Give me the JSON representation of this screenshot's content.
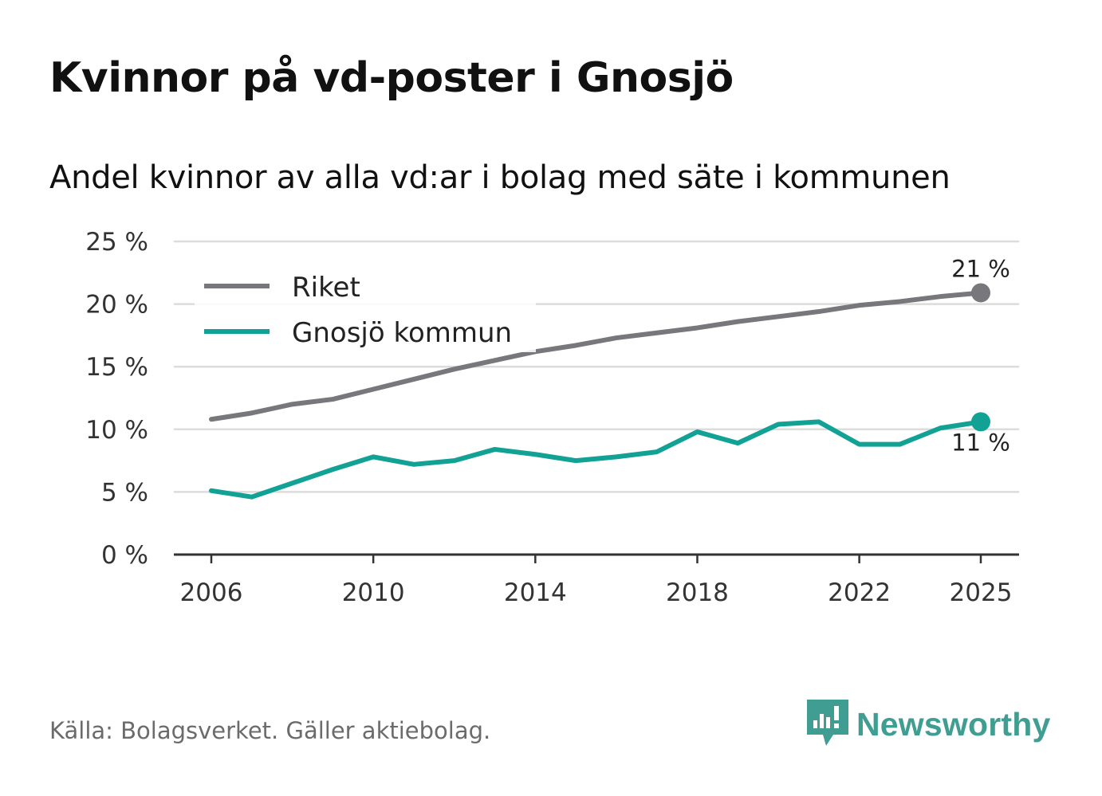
{
  "header": {
    "title": "Kvinnor på vd-poster i Gnosjö",
    "subtitle": "Andel kvinnor av alla vd:ar i bolag med säte i kommunen"
  },
  "footer": {
    "source": "Källa: Bolagsverket. Gäller aktiebolag.",
    "brand": "Newsworthy",
    "brand_color": "#3f9e91"
  },
  "chart_data": {
    "type": "line",
    "title": "Kvinnor på vd-poster i Gnosjö",
    "subtitle": "Andel kvinnor av alla vd:ar i bolag med säte i kommunen",
    "xlabel": "",
    "ylabel": "",
    "x": [
      2006,
      2007,
      2008,
      2009,
      2010,
      2011,
      2012,
      2013,
      2014,
      2015,
      2016,
      2017,
      2018,
      2019,
      2020,
      2021,
      2022,
      2023,
      2024,
      2025
    ],
    "series": [
      {
        "name": "Riket",
        "color": "#77777c",
        "values": [
          10.8,
          11.3,
          12.0,
          12.4,
          13.2,
          14.0,
          14.8,
          15.5,
          16.2,
          16.7,
          17.3,
          17.7,
          18.1,
          18.6,
          19.0,
          19.4,
          19.9,
          20.2,
          20.6,
          20.9
        ],
        "end_label": "21 %"
      },
      {
        "name": "Gnosjö kommun",
        "color": "#12a295",
        "values": [
          5.1,
          4.6,
          5.7,
          6.8,
          7.8,
          7.2,
          7.5,
          8.4,
          8.0,
          7.5,
          7.8,
          8.2,
          9.8,
          8.9,
          10.4,
          10.6,
          8.8,
          8.8,
          10.1,
          10.6
        ],
        "end_label": "11 %"
      }
    ],
    "ylim": [
      0,
      25
    ],
    "yticks": [
      0,
      5,
      10,
      15,
      20,
      25
    ],
    "ytick_labels": [
      "0 %",
      "5 %",
      "10 %",
      "15 %",
      "20 %",
      "25 %"
    ],
    "xticks": [
      2006,
      2010,
      2014,
      2018,
      2022,
      2025
    ],
    "xtick_labels": [
      "2006",
      "2010",
      "2014",
      "2018",
      "2022",
      "2025"
    ],
    "grid": true,
    "legend_position": "top-left"
  }
}
